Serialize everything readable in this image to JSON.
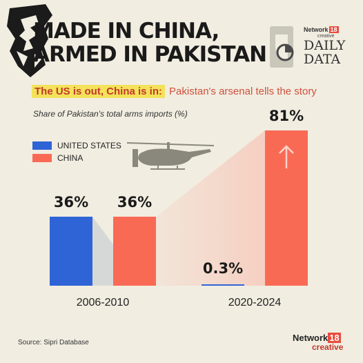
{
  "header": {
    "title_line1": "MADE IN CHINA,",
    "title_line2": "ARMED IN PAKISTAN",
    "brand_network": "Network",
    "brand_18": "18",
    "brand_creative": "creative",
    "brand_daily_line1": "DAILY",
    "brand_daily_line2": "DATA"
  },
  "subtitle": {
    "highlight": "The US is out, China is in:",
    "rest": "Pakistan's arsenal tells the story"
  },
  "chart_data": {
    "type": "bar",
    "title": "MADE IN CHINA, ARMED IN PAKISTAN",
    "subtitle": "The US is out, China is in: Pakistan's arsenal tells the story",
    "ylabel": "Share of Pakistan's total arms imports (%)",
    "categories": [
      "2006-2010",
      "2020-2024"
    ],
    "series": [
      {
        "name": "UNITED STATES",
        "values": [
          36,
          0.3
        ],
        "labels": [
          "36%",
          "0.3%"
        ],
        "color": "#2f64d6"
      },
      {
        "name": "CHINA",
        "values": [
          36,
          81
        ],
        "labels": [
          "36%",
          "81%"
        ],
        "color": "#f96a55"
      }
    ],
    "ylim": [
      0,
      81
    ],
    "legend_position": "top-left",
    "grid": false
  },
  "footer": {
    "source": "Source: Sipri Database",
    "network": "Network",
    "network_18": "18",
    "creative": "creative"
  },
  "colors": {
    "background": "#f1ede1",
    "us": "#2f64d6",
    "china": "#f96a55",
    "highlight": "#f3e25a",
    "accent": "#c0392b"
  },
  "icons": [
    "lion-head-icon",
    "helicopter-icon",
    "arrow-up-icon",
    "daily-data-logo-icon"
  ]
}
